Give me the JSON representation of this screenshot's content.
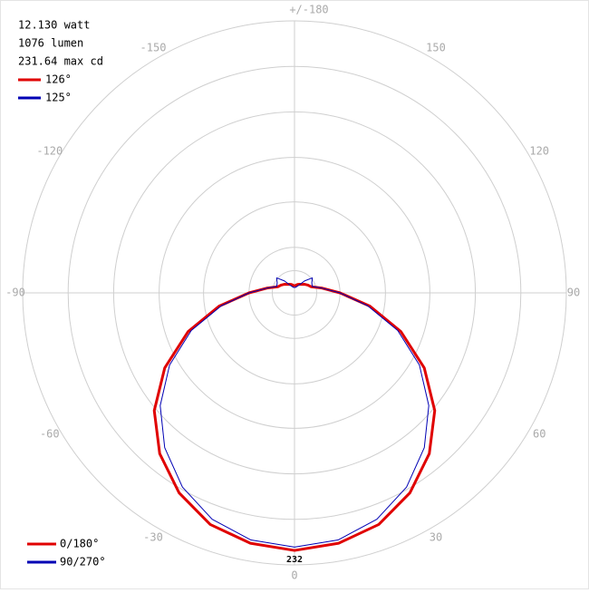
{
  "chart_data": {
    "type": "polar",
    "info": [
      "12.130 watt",
      "1076 lumen",
      "231.64 max cd"
    ],
    "beam_angles": [
      {
        "label": "126°",
        "color": "#e00000"
      },
      {
        "label": "125°",
        "color": "#0000b4"
      }
    ],
    "rlim": [
      0,
      245
    ],
    "rticks": [
      20,
      41,
      82,
      122,
      163,
      204,
      245
    ],
    "angle_ticks": [
      {
        "value": 180,
        "label": "+/-180"
      },
      -150,
      150,
      -120,
      120,
      -90,
      90,
      -60,
      60,
      -30,
      30,
      0
    ],
    "peak_label": 232,
    "x": [
      -180,
      -170,
      -160,
      -150,
      -140,
      -130,
      -120,
      -110,
      -100,
      -90,
      -80,
      -70,
      -60,
      -50,
      -40,
      -30,
      -20,
      -10,
      0,
      10,
      20,
      30,
      40,
      50,
      60,
      70,
      80,
      90,
      100,
      110,
      120,
      130,
      140,
      150,
      160,
      170,
      180
    ],
    "series": [
      {
        "name": "0/180°",
        "color": "#e00000",
        "width": 3,
        "values": [
          6,
          7,
          8,
          9,
          10,
          12,
          14,
          16,
          25,
          41,
          69,
          102,
          135,
          165,
          189,
          208,
          222,
          229,
          232,
          229,
          222,
          208,
          189,
          165,
          135,
          102,
          69,
          41,
          25,
          16,
          14,
          12,
          10,
          9,
          8,
          7,
          6
        ]
      },
      {
        "name": "90/270°",
        "color": "#0000b4",
        "width": 1,
        "values": [
          5,
          5,
          6,
          8,
          14,
          21,
          18,
          17,
          25,
          41,
          67,
          99,
          130,
          158,
          182,
          202,
          217,
          226,
          229,
          226,
          217,
          202,
          182,
          158,
          130,
          99,
          67,
          41,
          25,
          17,
          18,
          21,
          14,
          8,
          6,
          5,
          5
        ]
      }
    ]
  }
}
